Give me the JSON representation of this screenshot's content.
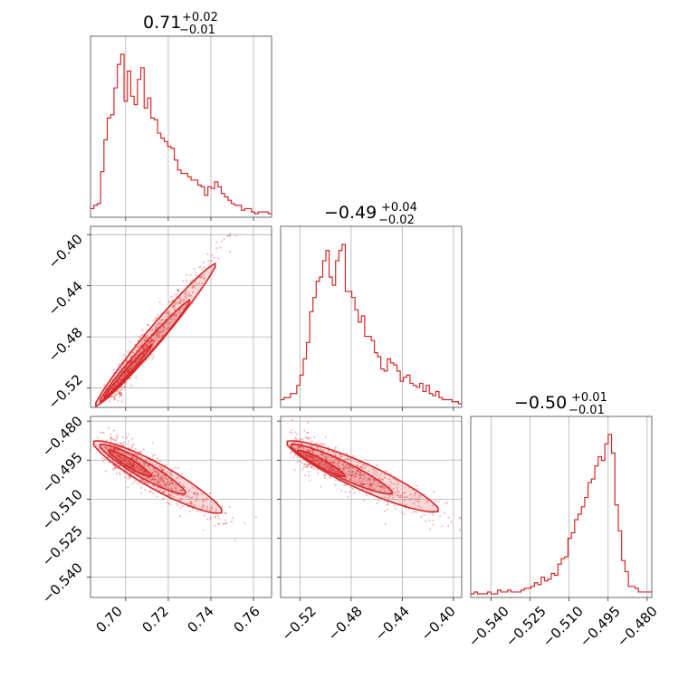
{
  "chart_data": {
    "type": "corner",
    "color": "#d62728",
    "grid": true,
    "parameters": [
      {
        "median": "0.71",
        "plus": "+0.02",
        "minus": "−0.01",
        "range": [
          0.6835,
          0.7685
        ],
        "ticks": [
          0.7,
          0.72,
          0.74,
          0.76
        ],
        "tick_labels": [
          "0.70",
          "0.72",
          "0.74",
          "0.76"
        ]
      },
      {
        "median": "−0.49",
        "plus": "+0.04",
        "minus": "−0.02",
        "range": [
          -0.5352,
          -0.3935
        ],
        "ticks": [
          -0.52,
          -0.48,
          -0.44,
          -0.4
        ],
        "tick_labels": [
          "−0.52",
          "−0.48",
          "−0.44",
          "−0.40"
        ]
      },
      {
        "median": "−0.50",
        "plus": "+0.01",
        "minus": "−0.01",
        "range": [
          -0.5478,
          -0.4782
        ],
        "ticks": [
          -0.54,
          -0.525,
          -0.51,
          -0.495,
          -0.48
        ],
        "tick_labels": [
          "−0.540",
          "−0.525",
          "−0.510",
          "−0.495",
          "−0.480"
        ]
      }
    ],
    "histograms": [
      {
        "param": 0,
        "counts": [
          3,
          5,
          6,
          25,
          44,
          57,
          59,
          75,
          89,
          95,
          67,
          85,
          70,
          65,
          80,
          87,
          63,
          69,
          57,
          56,
          48,
          45,
          43,
          40,
          39,
          32,
          26,
          24,
          24,
          22,
          20,
          20,
          17,
          16,
          11,
          16,
          15,
          19,
          16,
          12,
          10,
          8,
          6,
          5,
          5,
          2,
          3,
          3,
          1,
          0,
          1,
          1,
          1,
          0
        ]
      },
      {
        "param": 1,
        "counts": [
          2,
          3,
          3,
          5,
          5,
          9,
          14,
          22,
          30,
          45,
          52,
          60,
          62,
          70,
          75,
          62,
          58,
          70,
          75,
          78,
          55,
          55,
          52,
          46,
          40,
          43,
          33,
          33,
          31,
          25,
          23,
          17,
          16,
          22,
          20,
          19,
          16,
          11,
          13,
          14,
          10,
          9,
          8,
          10,
          6,
          9,
          5,
          4,
          6,
          3,
          2,
          2,
          2,
          1,
          1,
          0
        ]
      },
      {
        "param": 2,
        "counts": [
          0,
          1,
          0,
          0,
          0,
          1,
          0,
          0,
          2,
          1,
          1,
          2,
          1,
          1,
          1,
          2,
          3,
          3,
          4,
          6,
          5,
          9,
          7,
          8,
          11,
          10,
          16,
          19,
          20,
          30,
          33,
          40,
          43,
          47,
          52,
          60,
          62,
          69,
          74,
          72,
          81,
          86,
          76,
          48,
          34,
          18,
          12,
          4,
          4,
          3,
          1,
          1,
          1,
          1
        ]
      }
    ],
    "pairs": [
      {
        "x_param": 0,
        "y_param": 1,
        "correlation": "positive"
      },
      {
        "x_param": 0,
        "y_param": 2,
        "correlation": "negative"
      },
      {
        "x_param": 1,
        "y_param": 2,
        "correlation": "negative"
      }
    ]
  }
}
